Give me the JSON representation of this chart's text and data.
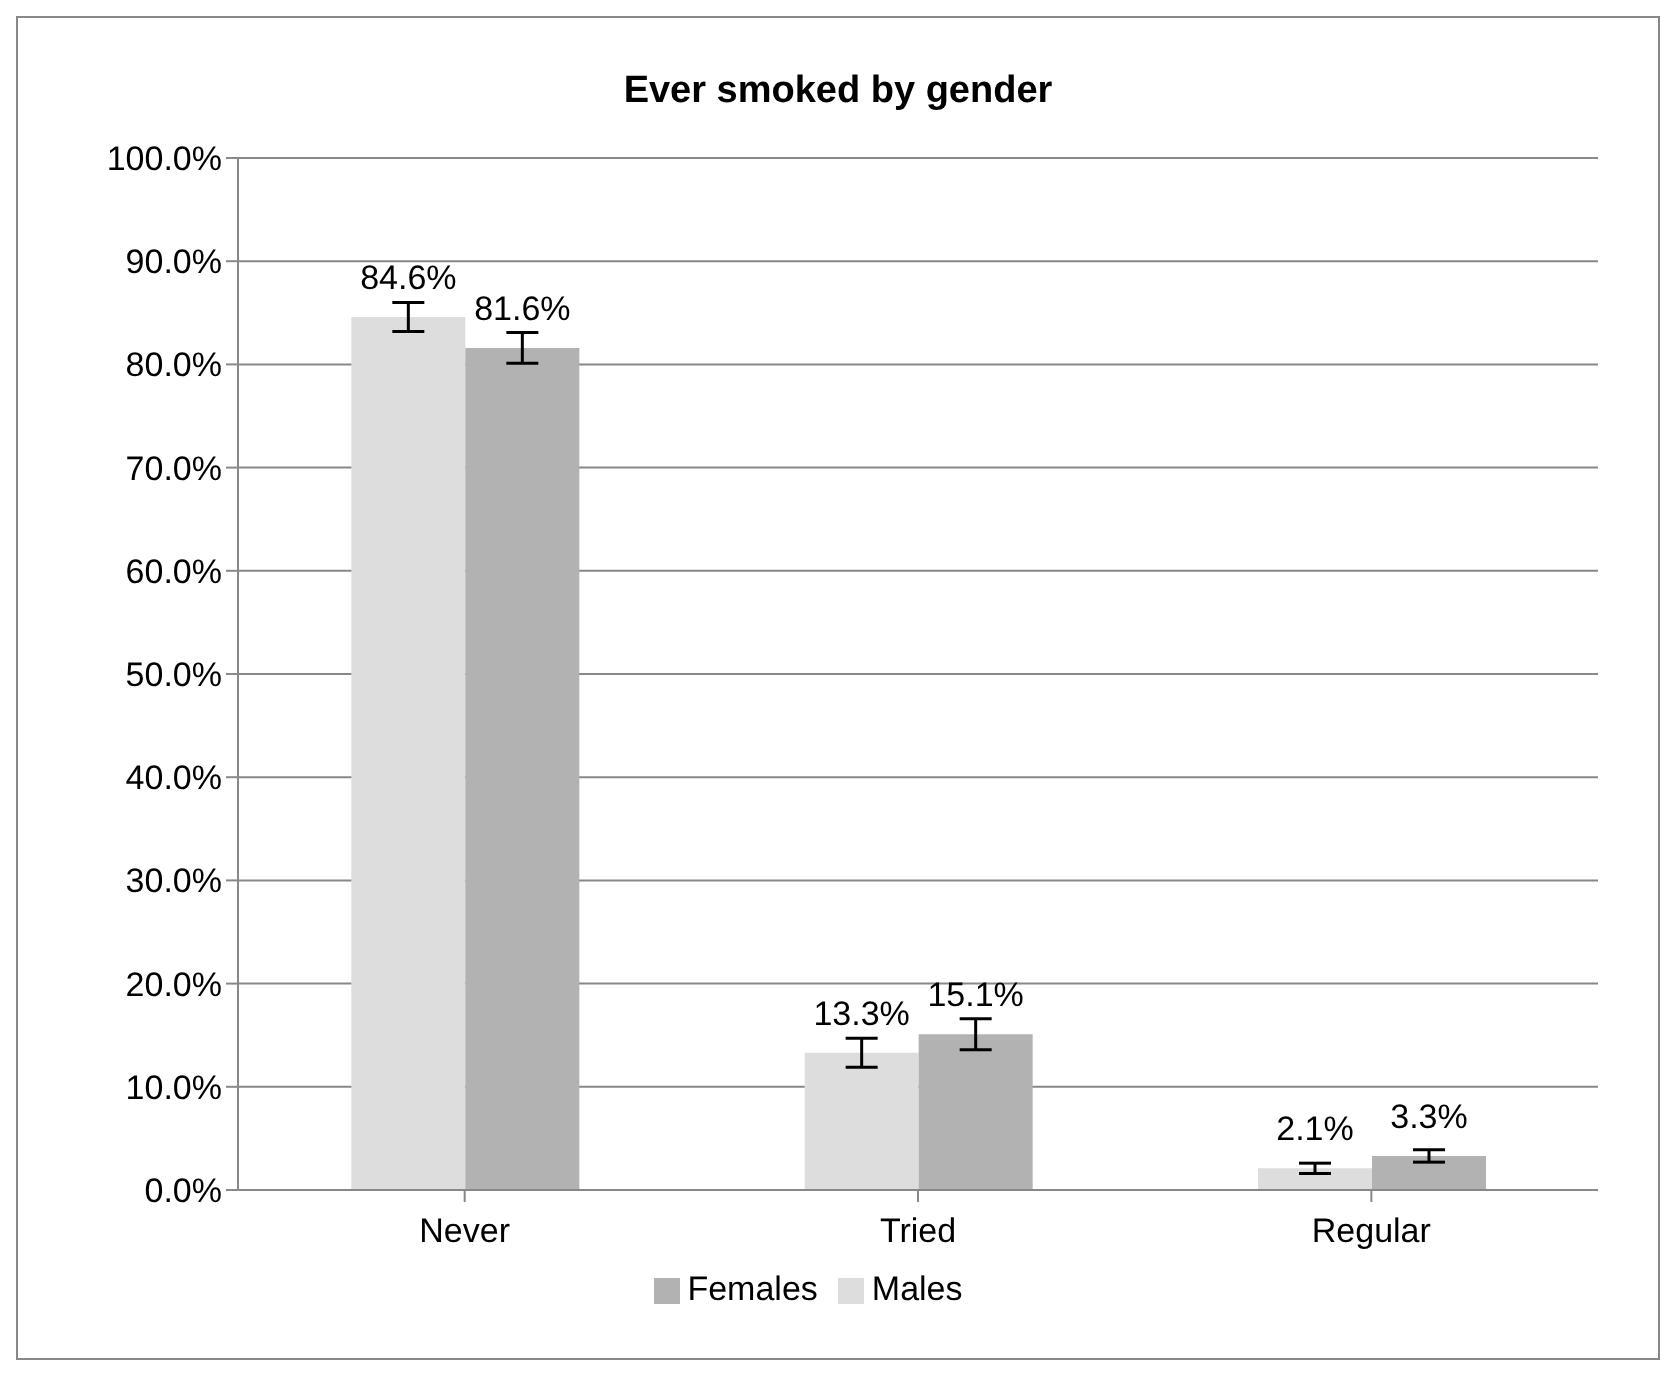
{
  "chart_data": {
    "type": "bar",
    "title": "Ever smoked by gender",
    "categories": [
      "Never",
      "Tried",
      "Regular"
    ],
    "series": [
      {
        "name": "Males",
        "color": "#dddddd",
        "values": [
          84.6,
          13.3,
          2.1
        ],
        "errors": [
          1.4,
          1.4,
          0.5
        ],
        "value_labels": [
          "84.6%",
          "13.3%",
          "2.1%"
        ]
      },
      {
        "name": "Females",
        "color": "#b2b2b2",
        "values": [
          81.6,
          15.1,
          3.3
        ],
        "errors": [
          1.5,
          1.5,
          0.6
        ],
        "value_labels": [
          "81.6%",
          "15.1%",
          "3.3%"
        ]
      }
    ],
    "ylim": [
      0,
      100
    ],
    "yticks": [
      {
        "value": 0,
        "label": "0.0%"
      },
      {
        "value": 10,
        "label": "10.0%"
      },
      {
        "value": 20,
        "label": "20.0%"
      },
      {
        "value": 30,
        "label": "30.0%"
      },
      {
        "value": 40,
        "label": "40.0%"
      },
      {
        "value": 50,
        "label": "50.0%"
      },
      {
        "value": 60,
        "label": "60.0%"
      },
      {
        "value": 70,
        "label": "70.0%"
      },
      {
        "value": 80,
        "label": "80.0%"
      },
      {
        "value": 90,
        "label": "90.0%"
      },
      {
        "value": 100,
        "label": "100.0%"
      }
    ],
    "grid": "y",
    "legend": "bottom"
  }
}
